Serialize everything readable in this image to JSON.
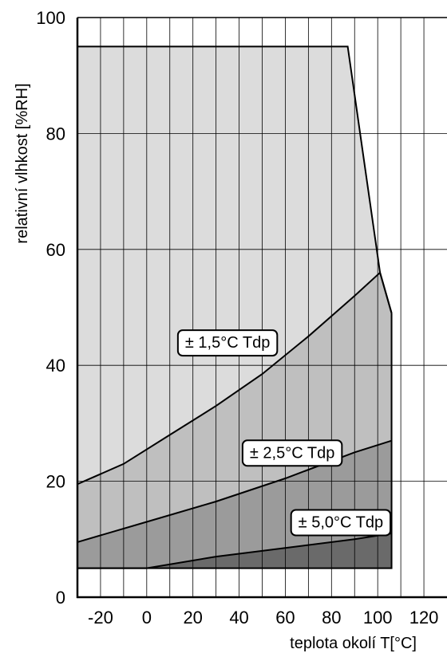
{
  "chart_data": {
    "type": "area",
    "xlabel": "teplota okolí  T[°C]",
    "ylabel": "relativní vlhkost  [%RH]",
    "xlim": [
      -30,
      130
    ],
    "ylim": [
      0,
      100
    ],
    "x_ticks": [
      "-20",
      "0",
      "20",
      "40",
      "60",
      "80",
      "100",
      "120"
    ],
    "y_ticks": [
      "0",
      "20",
      "40",
      "60",
      "80",
      "100"
    ],
    "grid": true,
    "regions": [
      {
        "name": "± 1,5°C Tdp",
        "fill": "#dcdcdc",
        "x": [
          -30,
          87,
          101,
          106,
          106,
          -30
        ],
        "y": [
          95,
          95,
          56,
          49,
          5,
          5
        ]
      },
      {
        "name": "± 2,5°C Tdp",
        "fill": "#bfbfbf",
        "x": [
          -30,
          -10,
          10,
          30,
          50,
          70,
          90,
          101,
          106,
          106,
          -30
        ],
        "y": [
          19.5,
          23,
          28,
          33,
          38.5,
          45,
          52,
          56,
          49,
          5,
          5
        ]
      },
      {
        "name": "± 5,0°C Tdp",
        "fill": "#9b9b9b",
        "x": [
          -30,
          0,
          30,
          60,
          90,
          106,
          106,
          -30
        ],
        "y": [
          9.5,
          13,
          16.5,
          20.5,
          25,
          27,
          5,
          5
        ]
      },
      {
        "name": "",
        "fill": "#6a6a6a",
        "x": [
          -30,
          0,
          30,
          60,
          90,
          106,
          106,
          -30
        ],
        "y": [
          5,
          5,
          7,
          8.5,
          10,
          11,
          5,
          5
        ]
      }
    ],
    "labels": [
      {
        "text": "± 1,5°C Tdp",
        "x": 35,
        "y": 44
      },
      {
        "text": "± 2,5°C Tdp",
        "x": 63,
        "y": 25
      },
      {
        "text": "± 5,0°C Tdp",
        "x": 84,
        "y": 13
      }
    ]
  }
}
